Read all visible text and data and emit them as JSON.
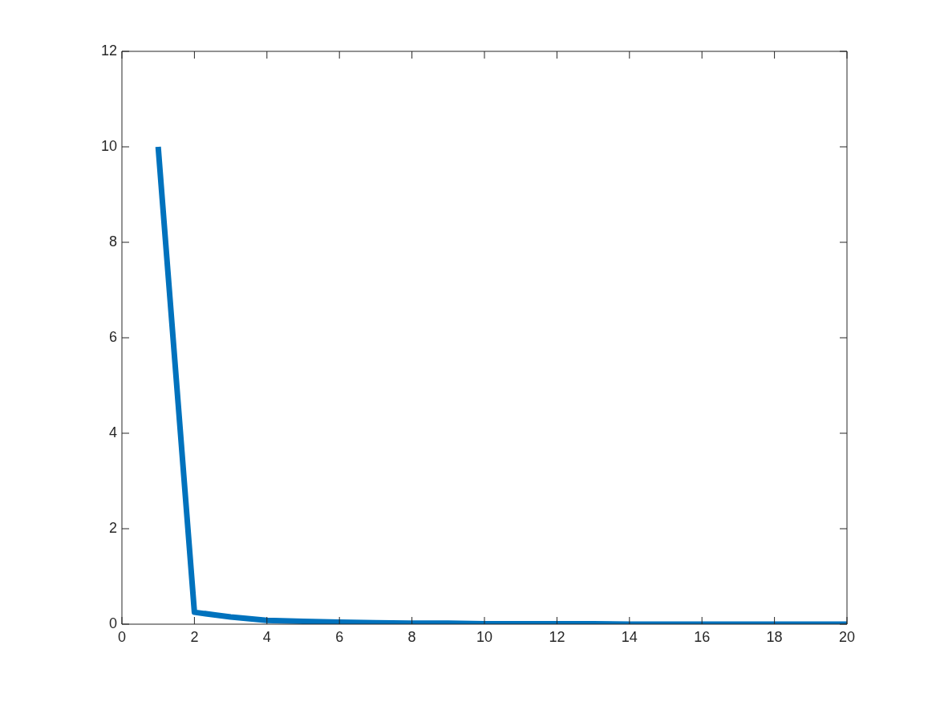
{
  "chart_data": {
    "type": "line",
    "x": [
      1,
      2,
      3,
      4,
      5,
      6,
      7,
      8,
      9,
      10,
      11,
      12,
      13,
      14,
      15,
      16,
      17,
      18,
      19,
      20
    ],
    "series": [
      {
        "color": "#0072bd",
        "values": [
          10,
          0.25,
          0.15,
          0.08,
          0.06,
          0.04,
          0.03,
          0.02,
          0.02,
          0.01,
          0.01,
          0.01,
          0.01,
          0,
          0,
          0,
          0,
          0,
          0,
          0
        ]
      }
    ],
    "xlim": [
      0,
      20
    ],
    "xticks": [
      0,
      2,
      4,
      6,
      8,
      10,
      12,
      14,
      16,
      18,
      20
    ],
    "ylim": [
      0,
      12
    ],
    "yticks": [
      0,
      2,
      4,
      6,
      8,
      10,
      12
    ],
    "grid": false,
    "legend": false,
    "marker": "none",
    "line_style": "solid"
  }
}
